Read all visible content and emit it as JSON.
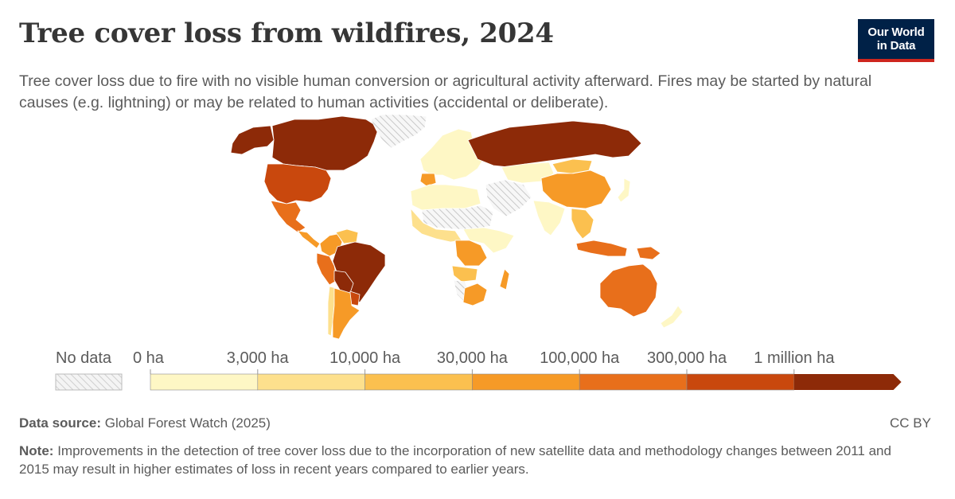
{
  "header": {
    "title": "Tree cover loss from wildfires, 2024",
    "subtitle": "Tree cover loss due to fire with no visible human conversion or agricultural activity afterward. Fires may be started by natural causes (e.g. lightning) or may be related to human activities (accidental or deliberate)."
  },
  "logo": {
    "line1": "Our World",
    "line2": "in Data",
    "bg": "#002147",
    "accent": "#ce261e"
  },
  "legend": {
    "no_data_label": "No data",
    "bins": [
      {
        "label": "0 ha",
        "color": "#fef7c5"
      },
      {
        "label": "3,000 ha",
        "color": "#fde08d"
      },
      {
        "label": "10,000 ha",
        "color": "#fbc04f"
      },
      {
        "label": "30,000 ha",
        "color": "#f69a27"
      },
      {
        "label": "100,000 ha",
        "color": "#e86f1b"
      },
      {
        "label": "300,000 ha",
        "color": "#c9480d"
      },
      {
        "label": "1 million ha",
        "color": "#8d2a08"
      }
    ]
  },
  "regions": [
    {
      "name": "Canada",
      "color": "#8d2a08"
    },
    {
      "name": "Alaska",
      "color": "#8d2a08"
    },
    {
      "name": "Greenland",
      "color": "no-data"
    },
    {
      "name": "United States",
      "color": "#c9480d"
    },
    {
      "name": "Mexico",
      "color": "#e86f1b"
    },
    {
      "name": "Central America",
      "color": "#f69a27"
    },
    {
      "name": "Colombia",
      "color": "#f69a27"
    },
    {
      "name": "Venezuela",
      "color": "#fbc04f"
    },
    {
      "name": "Peru",
      "color": "#e86f1b"
    },
    {
      "name": "Brazil",
      "color": "#8d2a08"
    },
    {
      "name": "Bolivia",
      "color": "#8d2a08"
    },
    {
      "name": "Paraguay",
      "color": "#c9480d"
    },
    {
      "name": "Chile",
      "color": "#fde08d"
    },
    {
      "name": "Argentina",
      "color": "#f69a27"
    },
    {
      "name": "Europe",
      "color": "#fef7c5"
    },
    {
      "name": "Iberia",
      "color": "#f69a27"
    },
    {
      "name": "North Africa",
      "color": "#fef7c5"
    },
    {
      "name": "Sahara",
      "color": "no-data"
    },
    {
      "name": "West Africa",
      "color": "#fde08d"
    },
    {
      "name": "Central Africa",
      "color": "#fef7c5"
    },
    {
      "name": "DR Congo",
      "color": "#f69a27"
    },
    {
      "name": "Angola",
      "color": "#fbc04f"
    },
    {
      "name": "Namibia",
      "color": "no-data"
    },
    {
      "name": "South Africa",
      "color": "#f69a27"
    },
    {
      "name": "Madagascar",
      "color": "#f69a27"
    },
    {
      "name": "Middle East",
      "color": "no-data"
    },
    {
      "name": "Russia",
      "color": "#8d2a08"
    },
    {
      "name": "Kazakhstan",
      "color": "#fef7c5"
    },
    {
      "name": "Mongolia",
      "color": "#fbc04f"
    },
    {
      "name": "China",
      "color": "#f69a27"
    },
    {
      "name": "India",
      "color": "#fef7c5"
    },
    {
      "name": "Southeast Asia",
      "color": "#fbc04f"
    },
    {
      "name": "Indonesia",
      "color": "#e86f1b"
    },
    {
      "name": "Papua New Guinea",
      "color": "#e86f1b"
    },
    {
      "name": "Australia",
      "color": "#e86f1b"
    },
    {
      "name": "New Zealand",
      "color": "#fef7c5"
    },
    {
      "name": "Japan",
      "color": "#fef7c5"
    }
  ],
  "footer": {
    "source_label": "Data source:",
    "source_text": "Global Forest Watch (2025)",
    "license": "CC BY",
    "note_label": "Note:",
    "note_text": "Improvements in the detection of tree cover loss due to the incorporation of new satellite data and methodology changes between 2011 and 2015 may result in higher estimates of loss in recent years compared to earlier years."
  }
}
